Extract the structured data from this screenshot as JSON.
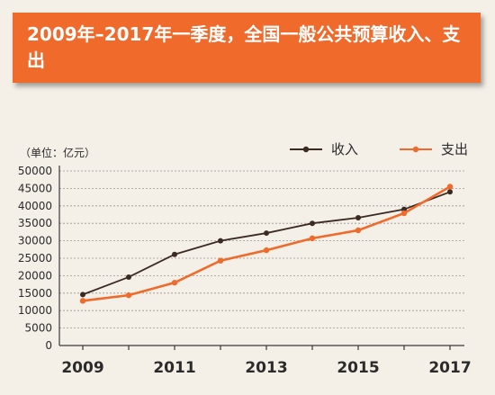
{
  "banner": {
    "title": "2009年–2017年一季度，全国一般公共预算收入、支出"
  },
  "chart_data": {
    "type": "line",
    "title": "2009年–2017年一季度，全国一般公共预算收入、支出",
    "unit_label": "（单位：亿元）",
    "x": [
      2009,
      2010,
      2011,
      2012,
      2013,
      2014,
      2015,
      2016,
      2017
    ],
    "x_tick_labels": [
      "2009",
      "2011",
      "2013",
      "2015",
      "2017"
    ],
    "x_tick_values": [
      2009,
      2011,
      2013,
      2015,
      2017
    ],
    "ylim": [
      0,
      50000
    ],
    "y_ticks": [
      0,
      5000,
      10000,
      15000,
      20000,
      25000,
      30000,
      35000,
      40000,
      45000,
      50000
    ],
    "grid": true,
    "legend_position": "top-right",
    "series": [
      {
        "name": "收入",
        "color": "#3b2a22",
        "values": [
          14600,
          19600,
          26100,
          30000,
          32200,
          35000,
          36600,
          39000,
          44000
        ]
      },
      {
        "name": "支出",
        "color": "#ef6a2b",
        "values": [
          12800,
          14400,
          18000,
          24300,
          27300,
          30700,
          33000,
          37900,
          45500
        ]
      }
    ]
  }
}
